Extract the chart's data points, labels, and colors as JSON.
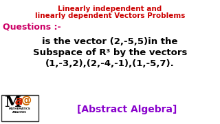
{
  "title_line1": "Linearly independent and",
  "title_line2": "linearly dependent Vectors Problems",
  "title_color": "#cc0000",
  "bg_color": "#ffffff",
  "questions_label": "Questions :-",
  "questions_color": "#cc0066",
  "body_line1": "is the vector (2,-5,5)in the",
  "body_line2": "Subspace of R³ by the vectors",
  "body_line3": "(1,-3,2),(2,-4,-1),(1,-5,7).",
  "body_color": "#000000",
  "abstract_text": "[Abstract Algebra]",
  "abstract_color": "#8800cc",
  "logo_M_color": "#000000",
  "logo_a_color": "#cc0000",
  "logo_at_color": "#cc6600",
  "logo_small_color": "#000000"
}
